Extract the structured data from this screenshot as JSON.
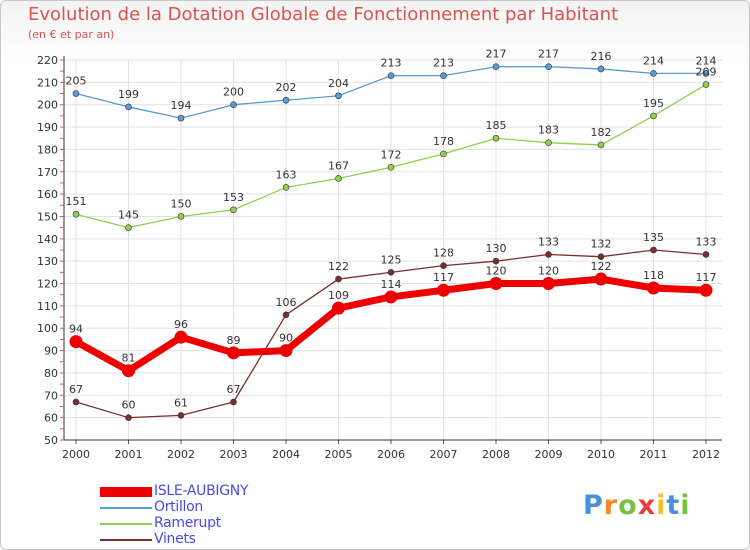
{
  "title": "Evolution de la Dotation Globale de Fonctionnement par Habitant",
  "subtitle": "(en € et par an)",
  "logo": {
    "letters": [
      "P",
      "r",
      "o",
      "x",
      "i",
      "t",
      "i"
    ],
    "colors": [
      "#4a90d9",
      "#f08a24",
      "#7cc043",
      "#e83e3e",
      "#f2c12e",
      "#4a90d9",
      "#7cc043"
    ]
  },
  "chart_data": {
    "type": "line",
    "title": "Evolution de la Dotation Globale de Fonctionnement par Habitant",
    "subtitle": "(en € et par an)",
    "xlabel": "",
    "ylabel": "",
    "ylim": [
      50,
      220
    ],
    "yticks": [
      50,
      60,
      70,
      80,
      90,
      100,
      110,
      120,
      130,
      140,
      150,
      160,
      170,
      180,
      190,
      200,
      210,
      220
    ],
    "grid": true,
    "legend_position": "bottom-left",
    "categories": [
      "2000",
      "2001",
      "2002",
      "2003",
      "2004",
      "2005",
      "2006",
      "2007",
      "2008",
      "2009",
      "2010",
      "2011",
      "2012"
    ],
    "series": [
      {
        "name": "ISLE-AUBIGNY",
        "color": "#ee0000",
        "values": [
          94,
          81,
          96,
          89,
          90,
          109,
          114,
          117,
          120,
          120,
          122,
          118,
          117
        ]
      },
      {
        "name": "Ortillon",
        "color": "#5b9bd5",
        "values": [
          205,
          199,
          194,
          200,
          202,
          204,
          213,
          213,
          217,
          217,
          216,
          214,
          214
        ]
      },
      {
        "name": "Ramerupt",
        "color": "#8fd14f",
        "values": [
          151,
          145,
          150,
          153,
          163,
          167,
          172,
          178,
          185,
          183,
          182,
          195,
          209
        ]
      },
      {
        "name": "Vinets",
        "color": "#7a2e2e",
        "values": [
          67,
          60,
          61,
          67,
          106,
          122,
          125,
          128,
          130,
          133,
          132,
          135,
          133
        ]
      }
    ]
  }
}
